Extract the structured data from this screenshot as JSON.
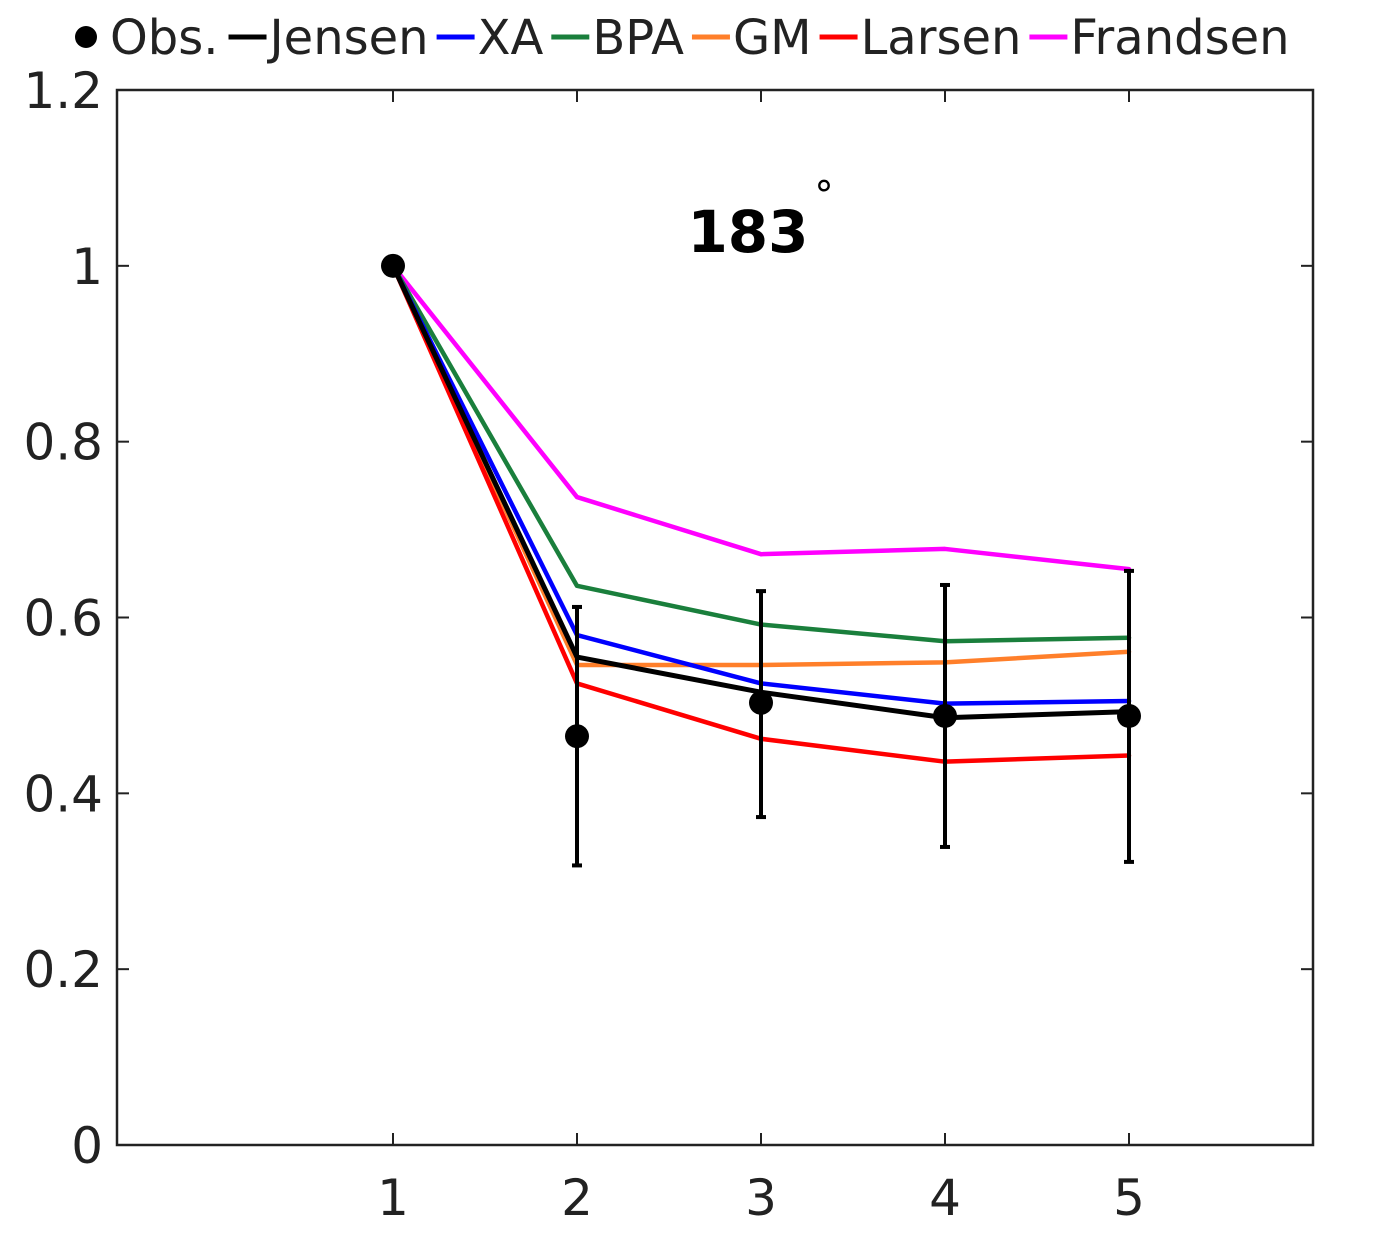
{
  "chart_data": {
    "type": "line",
    "title": "",
    "xlabel": "",
    "ylabel": "",
    "annotation": "183",
    "annotation_suffix": "°",
    "x": [
      1,
      2,
      3,
      4,
      5
    ],
    "xlim": [
      -0.5,
      6
    ],
    "ylim": [
      0,
      1.2
    ],
    "xticks": [
      1,
      2,
      3,
      4,
      5
    ],
    "xtick_labels": [
      "1",
      "2",
      "3",
      "4",
      "5"
    ],
    "yticks": [
      0,
      0.2,
      0.4,
      0.6,
      0.8,
      1.0,
      1.2
    ],
    "ytick_labels": [
      "0",
      "0.2",
      "0.4",
      "0.6",
      "0.8",
      "1",
      "1.2"
    ],
    "grid": false,
    "legend_position": "top",
    "observations": {
      "name": "Obs.",
      "color": "#000000",
      "values": [
        1.0,
        0.465,
        0.503,
        0.488,
        0.488
      ],
      "error_low": [
        null,
        0.318,
        0.373,
        0.339,
        0.322
      ],
      "error_high": [
        null,
        0.612,
        0.63,
        0.637,
        0.653
      ]
    },
    "series": [
      {
        "name": "Jensen",
        "color": "#000000",
        "values": [
          1.0,
          0.555,
          0.515,
          0.486,
          0.493
        ]
      },
      {
        "name": "XA",
        "color": "#0000ff",
        "values": [
          1.0,
          0.58,
          0.525,
          0.502,
          0.505
        ]
      },
      {
        "name": "BPA",
        "color": "#1a7f3c",
        "values": [
          1.0,
          0.636,
          0.592,
          0.573,
          0.577
        ]
      },
      {
        "name": "GM",
        "color": "#ff7f2a",
        "values": [
          1.0,
          0.546,
          0.546,
          0.549,
          0.561
        ]
      },
      {
        "name": "Larsen",
        "color": "#ff0000",
        "values": [
          1.0,
          0.525,
          0.462,
          0.436,
          0.443
        ]
      },
      {
        "name": "Frandsen",
        "color": "#ff00ff",
        "values": [
          1.0,
          0.737,
          0.672,
          0.678,
          0.655
        ]
      }
    ]
  }
}
